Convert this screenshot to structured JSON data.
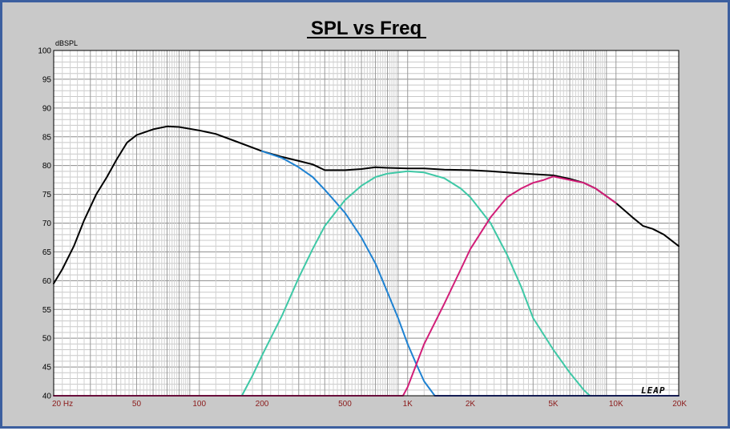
{
  "chart_data": {
    "type": "line",
    "title": "SPL vs Freq",
    "ylabel": "dBSPL",
    "xlabel": "",
    "xscale": "log",
    "xlim": [
      20,
      20000
    ],
    "ylim": [
      40,
      100
    ],
    "grid": true,
    "legend": "none",
    "logo_text": "LEAP",
    "yticks": [
      "40",
      "45",
      "50",
      "55",
      "60",
      "65",
      "70",
      "75",
      "80",
      "85",
      "90",
      "95",
      "100"
    ],
    "xticks": [
      {
        "value": 20,
        "label": "20  Hz"
      },
      {
        "value": 50,
        "label": "50"
      },
      {
        "value": 100,
        "label": "100"
      },
      {
        "value": 200,
        "label": "200"
      },
      {
        "value": 500,
        "label": "500"
      },
      {
        "value": 1000,
        "label": "1K"
      },
      {
        "value": 2000,
        "label": "2K"
      },
      {
        "value": 5000,
        "label": "5K"
      },
      {
        "value": 10000,
        "label": "10K"
      },
      {
        "value": 20000,
        "label": "20K"
      }
    ],
    "series": [
      {
        "color": "#000000",
        "points": [
          [
            20,
            59.5
          ],
          [
            22,
            62
          ],
          [
            25,
            66
          ],
          [
            28,
            70.5
          ],
          [
            32,
            75
          ],
          [
            36,
            78
          ],
          [
            40,
            81
          ],
          [
            45,
            84
          ],
          [
            50,
            85.3
          ],
          [
            60,
            86.3
          ],
          [
            70,
            86.8
          ],
          [
            80,
            86.7
          ],
          [
            100,
            86.1
          ],
          [
            120,
            85.5
          ],
          [
            150,
            84.2
          ],
          [
            200,
            82.5
          ],
          [
            250,
            81.5
          ],
          [
            300,
            80.8
          ],
          [
            350,
            80.2
          ],
          [
            400,
            79.2
          ],
          [
            500,
            79.2
          ],
          [
            600,
            79.4
          ],
          [
            700,
            79.7
          ],
          [
            800,
            79.6
          ],
          [
            1000,
            79.5
          ],
          [
            1200,
            79.5
          ],
          [
            1500,
            79.3
          ],
          [
            2000,
            79.2
          ],
          [
            2500,
            79
          ],
          [
            3000,
            78.8
          ],
          [
            4000,
            78.5
          ],
          [
            5000,
            78.3
          ],
          [
            6000,
            77.7
          ],
          [
            7000,
            77
          ],
          [
            8000,
            76
          ],
          [
            10000,
            73.5
          ],
          [
            12000,
            71
          ],
          [
            13500,
            69.5
          ],
          [
            15000,
            69
          ],
          [
            17000,
            68
          ],
          [
            20000,
            66
          ]
        ]
      },
      {
        "color": "#1e82d2",
        "points": [
          [
            200,
            82.5
          ],
          [
            250,
            81.3
          ],
          [
            300,
            79.7
          ],
          [
            350,
            78
          ],
          [
            400,
            75.8
          ],
          [
            450,
            73.7
          ],
          [
            500,
            71.8
          ],
          [
            600,
            67.5
          ],
          [
            700,
            63
          ],
          [
            800,
            58
          ],
          [
            900,
            53.5
          ],
          [
            1000,
            49
          ],
          [
            1100,
            45.5
          ],
          [
            1200,
            42.5
          ],
          [
            1350,
            40
          ]
        ]
      },
      {
        "color": "#3ec8a6",
        "points": [
          [
            20,
            40
          ],
          [
            160,
            40
          ],
          [
            180,
            43.5
          ],
          [
            200,
            47
          ],
          [
            250,
            54
          ],
          [
            300,
            60.5
          ],
          [
            350,
            65.5
          ],
          [
            400,
            69.5
          ],
          [
            500,
            74
          ],
          [
            600,
            76.5
          ],
          [
            700,
            78
          ],
          [
            800,
            78.6
          ],
          [
            1000,
            79
          ],
          [
            1200,
            78.8
          ],
          [
            1500,
            77.8
          ],
          [
            1800,
            76
          ],
          [
            2000,
            74.5
          ],
          [
            2500,
            70
          ],
          [
            3000,
            64.5
          ],
          [
            3500,
            59
          ],
          [
            4000,
            53.5
          ],
          [
            5000,
            48
          ],
          [
            6000,
            44
          ],
          [
            7000,
            41
          ],
          [
            7500,
            40
          ]
        ]
      },
      {
        "color": "#d21e78",
        "points": [
          [
            20,
            40
          ],
          [
            950,
            40
          ],
          [
            1000,
            41.5
          ],
          [
            1200,
            49
          ],
          [
            1500,
            56
          ],
          [
            1800,
            62
          ],
          [
            2000,
            65.5
          ],
          [
            2500,
            71
          ],
          [
            3000,
            74.5
          ],
          [
            3500,
            76
          ],
          [
            4000,
            77
          ],
          [
            4500,
            77.5
          ],
          [
            5000,
            78.1
          ],
          [
            6000,
            77.5
          ],
          [
            7000,
            77
          ],
          [
            8000,
            76
          ],
          [
            10000,
            73.5
          ]
        ]
      },
      {
        "color": "#2a3aa8",
        "points": [
          [
            1350,
            40
          ],
          [
            20000,
            40
          ]
        ]
      }
    ]
  }
}
